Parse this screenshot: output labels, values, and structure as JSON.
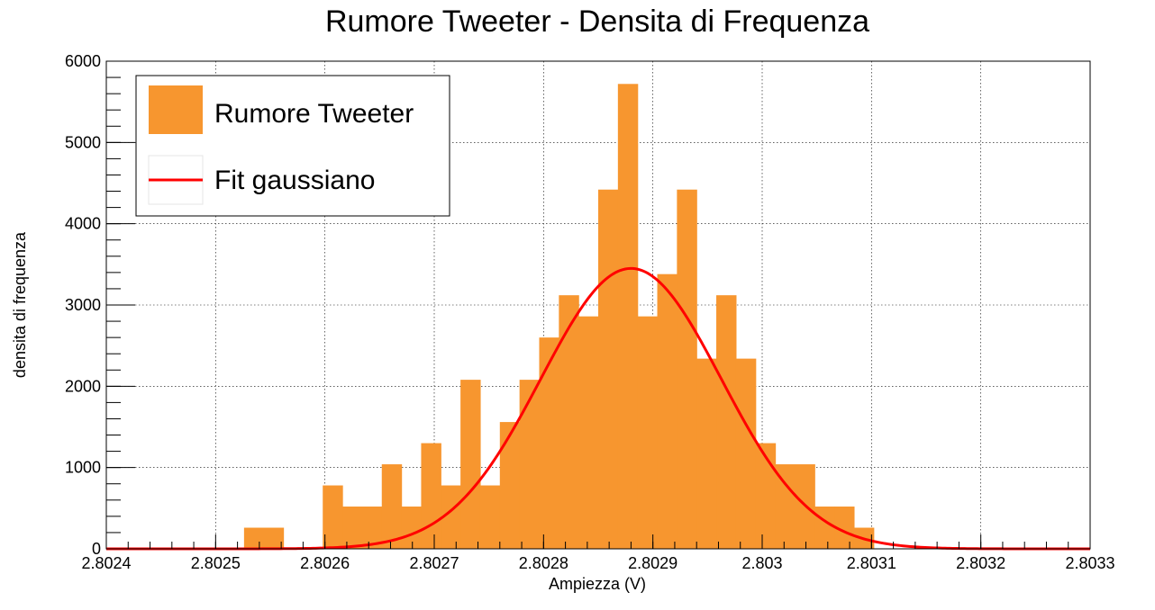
{
  "chart_data": {
    "type": "bar",
    "title": "Rumore Tweeter - Densita di Frequenza",
    "xlabel": "Ampiezza (V)",
    "ylabel": "densita di frequenza",
    "xlim": [
      2.8024,
      2.8033
    ],
    "ylim": [
      0,
      6000
    ],
    "x_ticks": [
      "2.8024",
      "2.8025",
      "2.8026",
      "2.8027",
      "2.8028",
      "2.8029",
      "2.803",
      "2.8031",
      "2.8032",
      "2.8033"
    ],
    "y_ticks": [
      "0",
      "1000",
      "2000",
      "3000",
      "4000",
      "5000",
      "6000"
    ],
    "grid": true,
    "legend_position": "top-left",
    "series": [
      {
        "name": "Rumore Tweeter",
        "kind": "histogram",
        "color": "#F7962F",
        "bins": [
          {
            "x0": 2.802526,
            "x1": 2.802562,
            "value": 260
          },
          {
            "x0": 2.802598,
            "x1": 2.802616,
            "value": 780
          },
          {
            "x0": 2.802616,
            "x1": 2.802652,
            "value": 520
          },
          {
            "x0": 2.802652,
            "x1": 2.80267,
            "value": 1040
          },
          {
            "x0": 2.80267,
            "x1": 2.802688,
            "value": 520
          },
          {
            "x0": 2.802688,
            "x1": 2.802706,
            "value": 1300
          },
          {
            "x0": 2.802706,
            "x1": 2.802724,
            "value": 780
          },
          {
            "x0": 2.802724,
            "x1": 2.802742,
            "value": 2080
          },
          {
            "x0": 2.802742,
            "x1": 2.80276,
            "value": 780
          },
          {
            "x0": 2.80276,
            "x1": 2.802778,
            "value": 1560
          },
          {
            "x0": 2.802778,
            "x1": 2.802796,
            "value": 2080
          },
          {
            "x0": 2.802796,
            "x1": 2.802814,
            "value": 2600
          },
          {
            "x0": 2.802814,
            "x1": 2.802832,
            "value": 3120
          },
          {
            "x0": 2.802832,
            "x1": 2.80285,
            "value": 2860
          },
          {
            "x0": 2.80285,
            "x1": 2.802868,
            "value": 4420
          },
          {
            "x0": 2.802868,
            "x1": 2.802886,
            "value": 5720
          },
          {
            "x0": 2.802886,
            "x1": 2.802904,
            "value": 2860
          },
          {
            "x0": 2.802904,
            "x1": 2.802922,
            "value": 3380
          },
          {
            "x0": 2.802922,
            "x1": 2.80294,
            "value": 4420
          },
          {
            "x0": 2.80294,
            "x1": 2.802958,
            "value": 2340
          },
          {
            "x0": 2.802958,
            "x1": 2.802976,
            "value": 3120
          },
          {
            "x0": 2.802976,
            "x1": 2.802994,
            "value": 2340
          },
          {
            "x0": 2.802994,
            "x1": 2.803012,
            "value": 1300
          },
          {
            "x0": 2.803012,
            "x1": 2.803048,
            "value": 1040
          },
          {
            "x0": 2.803048,
            "x1": 2.803066,
            "value": 520
          },
          {
            "x0": 2.803066,
            "x1": 2.803084,
            "value": 520
          },
          {
            "x0": 2.803084,
            "x1": 2.803102,
            "value": 260
          }
        ]
      },
      {
        "name": "Fit gaussiano",
        "kind": "line",
        "color": "#FF0000",
        "function": "gaussian",
        "amplitude": 3450,
        "mean": 2.80288,
        "sigma": 8.25e-05
      }
    ]
  }
}
